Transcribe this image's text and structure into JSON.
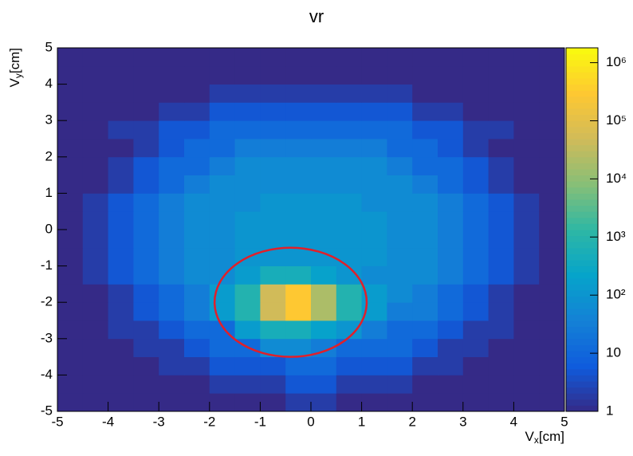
{
  "chart_data": {
    "type": "heatmap2d",
    "title": "vr",
    "xlabel": [
      "V",
      "x",
      "[cm]"
    ],
    "ylabel": [
      "V",
      "y",
      "[cm]"
    ],
    "xlim": [
      -5,
      5
    ],
    "ylim": [
      -5,
      5
    ],
    "xticks": [
      -5,
      -4,
      -3,
      -2,
      -1,
      0,
      1,
      2,
      3,
      4,
      5
    ],
    "yticks": [
      -5,
      -4,
      -3,
      -2,
      -1,
      0,
      1,
      2,
      3,
      4,
      5
    ],
    "xbins": [
      -5,
      -4.5,
      -4,
      -3.5,
      -3,
      -2.5,
      -2,
      -1.5,
      -1,
      -0.5,
      0,
      0.5,
      1,
      1.5,
      2,
      2.5,
      3,
      3.5,
      4,
      4.5,
      5
    ],
    "ybins": [
      -5,
      -4.5,
      -4,
      -3.5,
      -3,
      -2.5,
      -2,
      -1.5,
      -1,
      -0.5,
      0,
      0.5,
      1,
      1.5,
      2,
      2.5,
      3,
      3.5,
      4,
      4.5,
      5
    ],
    "z": [
      [
        1,
        1,
        1,
        1,
        1,
        1,
        1,
        1,
        1,
        2,
        2,
        1,
        1,
        1,
        1,
        1,
        1,
        1,
        1,
        1
      ],
      [
        1,
        1,
        1,
        1,
        1,
        1,
        2,
        2,
        2,
        5,
        5,
        2,
        2,
        2,
        1,
        1,
        1,
        1,
        1,
        1
      ],
      [
        1,
        1,
        1,
        1,
        2,
        2,
        5,
        5,
        5,
        12,
        12,
        5,
        5,
        5,
        2,
        2,
        1,
        1,
        1,
        1
      ],
      [
        1,
        1,
        1,
        2,
        2,
        5,
        12,
        12,
        60,
        60,
        30,
        12,
        12,
        12,
        5,
        2,
        2,
        1,
        1,
        1
      ],
      [
        1,
        1,
        2,
        2,
        5,
        12,
        12,
        150,
        500,
        500,
        200,
        100,
        30,
        12,
        12,
        5,
        2,
        2,
        1,
        1
      ],
      [
        1,
        1,
        2,
        5,
        12,
        30,
        150,
        800,
        50000,
        300000,
        20000,
        800,
        150,
        30,
        30,
        12,
        5,
        2,
        1,
        1
      ],
      [
        1,
        1,
        2,
        5,
        12,
        30,
        150,
        800,
        50000,
        300000,
        20000,
        800,
        150,
        60,
        30,
        12,
        5,
        2,
        1,
        1
      ],
      [
        1,
        2,
        5,
        12,
        30,
        60,
        60,
        150,
        500,
        500,
        200,
        100,
        60,
        60,
        60,
        30,
        12,
        5,
        2,
        1
      ],
      [
        1,
        2,
        5,
        12,
        30,
        60,
        60,
        100,
        100,
        100,
        100,
        100,
        100,
        60,
        60,
        30,
        12,
        5,
        2,
        1
      ],
      [
        1,
        2,
        5,
        12,
        30,
        60,
        60,
        100,
        100,
        100,
        100,
        100,
        100,
        60,
        60,
        30,
        12,
        5,
        2,
        1
      ],
      [
        1,
        2,
        5,
        12,
        30,
        60,
        60,
        100,
        100,
        100,
        100,
        100,
        100,
        60,
        60,
        30,
        12,
        5,
        2,
        1
      ],
      [
        1,
        2,
        5,
        12,
        30,
        60,
        60,
        60,
        100,
        100,
        100,
        100,
        60,
        60,
        60,
        30,
        12,
        5,
        2,
        1
      ],
      [
        1,
        1,
        2,
        5,
        12,
        30,
        60,
        60,
        60,
        60,
        60,
        60,
        60,
        60,
        30,
        12,
        5,
        2,
        1,
        1
      ],
      [
        1,
        1,
        2,
        5,
        12,
        12,
        30,
        60,
        60,
        60,
        60,
        60,
        60,
        30,
        12,
        12,
        5,
        2,
        1,
        1
      ],
      [
        1,
        1,
        1,
        2,
        5,
        12,
        12,
        30,
        30,
        30,
        30,
        30,
        30,
        12,
        12,
        5,
        2,
        1,
        1,
        1
      ],
      [
        1,
        1,
        2,
        2,
        5,
        5,
        12,
        12,
        12,
        12,
        12,
        12,
        12,
        12,
        5,
        5,
        2,
        2,
        1,
        1
      ],
      [
        1,
        1,
        1,
        1,
        2,
        2,
        5,
        5,
        5,
        5,
        5,
        5,
        5,
        5,
        2,
        2,
        1,
        1,
        1,
        1
      ],
      [
        1,
        1,
        1,
        1,
        1,
        1,
        2,
        2,
        2,
        2,
        2,
        2,
        2,
        2,
        1,
        1,
        1,
        1,
        1,
        1
      ],
      [
        1,
        1,
        1,
        1,
        1,
        1,
        1,
        1,
        1,
        1,
        1,
        1,
        1,
        1,
        1,
        1,
        1,
        1,
        1,
        1
      ],
      [
        1,
        1,
        1,
        1,
        1,
        1,
        1,
        1,
        1,
        1,
        1,
        1,
        1,
        1,
        1,
        1,
        1,
        1,
        1,
        1
      ]
    ],
    "zscale": "log",
    "zlim": [
      1,
      1800000
    ],
    "zticks": [
      1,
      10,
      {
        "value": 100,
        "label": "10²"
      },
      {
        "value": 1000,
        "label": "10³"
      },
      {
        "value": 10000,
        "label": "10⁴"
      },
      {
        "value": 100000,
        "label": "10⁵"
      },
      {
        "value": 1000000,
        "label": "10⁶"
      }
    ],
    "colormap": [
      "#352a87",
      "#0f5cdd",
      "#1481d6",
      "#06a4ca",
      "#2eb7a4",
      "#87bf77",
      "#d1bb59",
      "#fec832",
      "#f9fb0e"
    ],
    "ellipse": {
      "cx": -0.4,
      "cy": -2,
      "rx": 1.5,
      "ry": 1.5,
      "color": "#e0202a"
    }
  }
}
